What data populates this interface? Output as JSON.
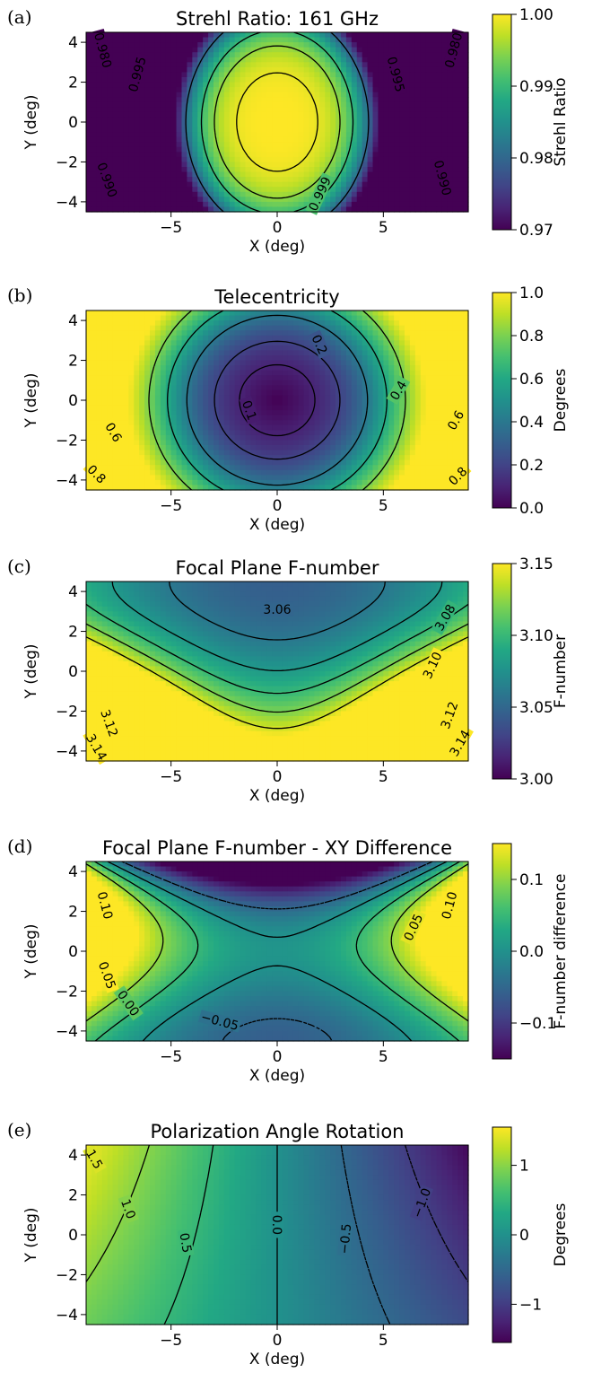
{
  "chart_data": [
    {
      "type": "heatmap",
      "panel": "(a)",
      "title": "Strehl Ratio: 161 GHz",
      "xlabel": "X (deg)",
      "ylabel": "Y (deg)",
      "xlim": [
        -9,
        9
      ],
      "ylim": [
        -4.5,
        4.5
      ],
      "xticks": [
        -5,
        0,
        5
      ],
      "xtick_labels": [
        "−5",
        "0",
        "5"
      ],
      "yticks": [
        4,
        2,
        0,
        -2,
        -4
      ],
      "ytick_labels": [
        "4",
        "2",
        "0",
        "−2",
        "−4"
      ],
      "colorbar": {
        "label": "Strehl Ratio",
        "range": [
          0.97,
          1.0
        ],
        "ticks": [
          1.0,
          0.99,
          0.98,
          0.97
        ],
        "tick_labels": [
          "1.00",
          "0.99",
          "0.98",
          "0.97"
        ]
      },
      "contour_levels": [
        0.98,
        0.99,
        0.995,
        0.999
      ],
      "contour_labels": [
        {
          "text": "0.980",
          "x": -8.2,
          "y": 3.6,
          "rot": 75
        },
        {
          "text": "0.995",
          "x": -6.6,
          "y": 2.4,
          "rot": -75
        },
        {
          "text": "0.995",
          "x": 5.6,
          "y": 2.4,
          "rot": 75
        },
        {
          "text": "0.980",
          "x": 8.3,
          "y": 3.6,
          "rot": -75
        },
        {
          "text": "0.990",
          "x": -8.0,
          "y": -2.9,
          "rot": 70
        },
        {
          "text": "0.999",
          "x": 2.0,
          "y": -3.6,
          "rot": -65
        },
        {
          "text": "0.990",
          "x": 7.8,
          "y": -2.8,
          "rot": 75
        }
      ]
    },
    {
      "type": "heatmap",
      "panel": "(b)",
      "title": "Telecentricity",
      "xlabel": "X (deg)",
      "ylabel": "Y (deg)",
      "xlim": [
        -9,
        9
      ],
      "ylim": [
        -4.5,
        4.5
      ],
      "xticks": [
        -5,
        0,
        5
      ],
      "xtick_labels": [
        "−5",
        "0",
        "5"
      ],
      "yticks": [
        4,
        2,
        0,
        -2,
        -4
      ],
      "ytick_labels": [
        "4",
        "2",
        "0",
        "−2",
        "−4"
      ],
      "colorbar": {
        "label": "Degrees",
        "range": [
          0.0,
          1.0
        ],
        "ticks": [
          1.0,
          0.8,
          0.6,
          0.4,
          0.2,
          0.0
        ],
        "tick_labels": [
          "1.0",
          "0.8",
          "0.6",
          "0.4",
          "0.2",
          "0.0"
        ]
      },
      "contour_levels": [
        0.1,
        0.2,
        0.4,
        0.6,
        0.8
      ],
      "contour_labels": [
        {
          "text": "0.1",
          "x": -1.3,
          "y": -0.5,
          "rot": 70
        },
        {
          "text": "0.2",
          "x": 2.0,
          "y": 2.8,
          "rot": 65
        },
        {
          "text": "0.4",
          "x": 5.7,
          "y": 0.5,
          "rot": -60
        },
        {
          "text": "0.6",
          "x": -7.7,
          "y": -1.6,
          "rot": 60
        },
        {
          "text": "0.6",
          "x": 8.4,
          "y": -1.0,
          "rot": -60
        },
        {
          "text": "0.8",
          "x": -8.5,
          "y": -3.7,
          "rot": 45
        },
        {
          "text": "0.8",
          "x": 8.5,
          "y": -3.8,
          "rot": -45
        }
      ]
    },
    {
      "type": "heatmap",
      "panel": "(c)",
      "title": "Focal Plane F-number",
      "xlabel": "X (deg)",
      "ylabel": "Y (deg)",
      "xlim": [
        -9,
        9
      ],
      "ylim": [
        -4.5,
        4.5
      ],
      "xticks": [
        -5,
        0,
        5
      ],
      "xtick_labels": [
        "−5",
        "0",
        "5"
      ],
      "yticks": [
        4,
        2,
        0,
        -2,
        -4
      ],
      "ytick_labels": [
        "4",
        "2",
        "0",
        "−2",
        "−4"
      ],
      "colorbar": {
        "label": "F-number",
        "range": [
          3.0,
          3.15
        ],
        "ticks": [
          3.15,
          3.1,
          3.05,
          3.0
        ],
        "tick_labels": [
          "3.15",
          "3.10",
          "3.05",
          "3.00"
        ]
      },
      "contour_levels": [
        3.06,
        3.08,
        3.1,
        3.12,
        3.14
      ],
      "contour_labels": [
        {
          "text": "3.06",
          "x": 0.0,
          "y": 3.1,
          "rot": 0
        },
        {
          "text": "3.08",
          "x": 7.9,
          "y": 2.7,
          "rot": -60
        },
        {
          "text": "3.10",
          "x": 7.3,
          "y": 0.3,
          "rot": -65
        },
        {
          "text": "3.12",
          "x": -7.9,
          "y": -2.6,
          "rot": 70
        },
        {
          "text": "3.12",
          "x": 8.1,
          "y": -2.2,
          "rot": -70
        },
        {
          "text": "3.14",
          "x": -8.5,
          "y": -3.8,
          "rot": 60
        },
        {
          "text": "3.14",
          "x": 8.6,
          "y": -3.6,
          "rot": -60
        }
      ]
    },
    {
      "type": "heatmap",
      "panel": "(d)",
      "title": "Focal Plane F-number - XY Difference",
      "xlabel": "X (deg)",
      "ylabel": "Y (deg)",
      "xlim": [
        -9,
        9
      ],
      "ylim": [
        -4.5,
        4.5
      ],
      "xticks": [
        -5,
        0,
        5
      ],
      "xtick_labels": [
        "−5",
        "0",
        "5"
      ],
      "yticks": [
        4,
        2,
        0,
        -2,
        -4
      ],
      "ytick_labels": [
        "4",
        "2",
        "0",
        "−2",
        "−4"
      ],
      "colorbar": {
        "label": "F-number difference",
        "range": [
          -0.15,
          0.15
        ],
        "ticks": [
          0.1,
          0.0,
          -0.1
        ],
        "tick_labels": [
          "0.1",
          "0.0",
          "−0.1"
        ]
      },
      "contour_levels": [
        -0.05,
        0.0,
        0.05,
        0.1
      ],
      "contour_labels": [
        {
          "text": "0.10",
          "x": -8.1,
          "y": 2.3,
          "rot": 75
        },
        {
          "text": "0.10",
          "x": 8.1,
          "y": 2.3,
          "rot": -75
        },
        {
          "text": "0.05",
          "x": 6.4,
          "y": 1.2,
          "rot": -65
        },
        {
          "text": "0.05",
          "x": -8.0,
          "y": -1.2,
          "rot": 70
        },
        {
          "text": "0.00",
          "x": -7.0,
          "y": -2.6,
          "rot": 55
        },
        {
          "text": "−0.05",
          "x": -2.7,
          "y": -3.5,
          "rot": 15
        }
      ]
    },
    {
      "type": "heatmap",
      "panel": "(e)",
      "title": "Polarization Angle Rotation",
      "xlabel": "X (deg)",
      "ylabel": "Y (deg)",
      "xlim": [
        -9,
        9
      ],
      "ylim": [
        -4.5,
        4.5
      ],
      "xticks": [
        -5,
        0,
        5
      ],
      "xtick_labels": [
        "−5",
        "0",
        "5"
      ],
      "yticks": [
        4,
        2,
        0,
        -2,
        -4
      ],
      "ytick_labels": [
        "4",
        "2",
        "0",
        "−2",
        "−4"
      ],
      "colorbar": {
        "label": "Degrees",
        "range": [
          -1.55,
          1.55
        ],
        "ticks": [
          1,
          0,
          -1
        ],
        "tick_labels": [
          "1",
          "0",
          "−1"
        ]
      },
      "contour_levels": [
        -1.5,
        -1.0,
        -0.5,
        0.0,
        0.5,
        1.0,
        1.5
      ],
      "contour_labels": [
        {
          "text": "1.5",
          "x": -8.6,
          "y": 3.8,
          "rot": 60
        },
        {
          "text": "1.0",
          "x": -7.0,
          "y": 1.3,
          "rot": 70
        },
        {
          "text": "0.5",
          "x": -4.3,
          "y": -0.4,
          "rot": 80
        },
        {
          "text": "0.0",
          "x": 0.0,
          "y": 0.5,
          "rot": 90
        },
        {
          "text": "−0.5",
          "x": 3.2,
          "y": -0.2,
          "rot": -85
        },
        {
          "text": "−1.0",
          "x": 6.8,
          "y": 1.6,
          "rot": -70
        }
      ]
    }
  ]
}
